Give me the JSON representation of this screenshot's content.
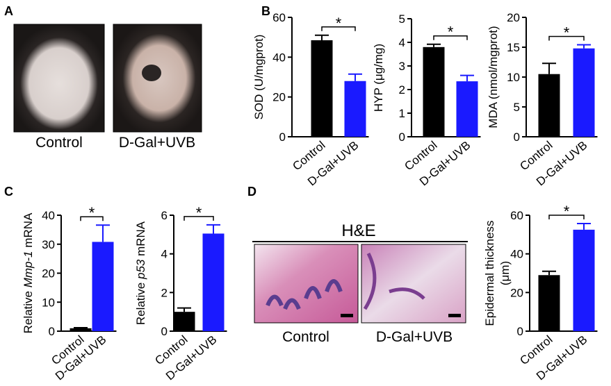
{
  "panel_labels": [
    "A",
    "B",
    "C",
    "D"
  ],
  "photo_captions": [
    "Control",
    "D-Gal+UVB"
  ],
  "histology": {
    "title": "H&E",
    "captions": [
      "Control",
      "D-Gal+UVB"
    ]
  },
  "chart_data": [
    {
      "type": "bar",
      "ylabel": [
        "SOD (U/mgprot)"
      ],
      "categories": [
        "Control",
        "D-Gal+UVB"
      ],
      "values": [
        48.5,
        28
      ],
      "errors": [
        2.5,
        3.5
      ],
      "colors": [
        "#000000",
        "#1a1aff"
      ],
      "ylim": [
        0,
        60
      ],
      "yticks": [
        0,
        20,
        40,
        60
      ],
      "annotation": "*"
    },
    {
      "type": "bar",
      "ylabel": [
        "HYP (μg/mg)"
      ],
      "categories": [
        "Control",
        "D-Gal+UVB"
      ],
      "values": [
        3.8,
        2.35
      ],
      "errors": [
        0.12,
        0.25
      ],
      "colors": [
        "#000000",
        "#1a1aff"
      ],
      "ylim": [
        0,
        5
      ],
      "yticks": [
        0,
        1,
        2,
        3,
        4,
        5
      ],
      "annotation": "*"
    },
    {
      "type": "bar",
      "ylabel": [
        "MDA (nmol/mgprot)"
      ],
      "categories": [
        "Control",
        "D-Gal+UVB"
      ],
      "values": [
        10.5,
        14.8
      ],
      "errors": [
        1.8,
        0.6
      ],
      "colors": [
        "#000000",
        "#1a1aff"
      ],
      "ylim": [
        0,
        20
      ],
      "yticks": [
        0,
        5,
        10,
        15,
        20
      ],
      "annotation": "*"
    },
    {
      "type": "bar",
      "ylabel": [
        "Relative ",
        "Mmp-1",
        " mRNA"
      ],
      "categories": [
        "Control",
        "D-Gal+UVB"
      ],
      "values": [
        1,
        30.8
      ],
      "errors": [
        0.2,
        5.8
      ],
      "colors": [
        "#000000",
        "#1a1aff"
      ],
      "ylim": [
        0,
        40
      ],
      "yticks": [
        0,
        10,
        20,
        30,
        40
      ],
      "annotation": "*"
    },
    {
      "type": "bar",
      "ylabel": [
        "Relative ",
        "p53",
        " mRNA"
      ],
      "categories": [
        "Control",
        "D-Gal+UVB"
      ],
      "values": [
        1,
        5.05
      ],
      "errors": [
        0.2,
        0.45
      ],
      "colors": [
        "#000000",
        "#1a1aff"
      ],
      "ylim": [
        0,
        6
      ],
      "yticks": [
        0,
        2,
        4,
        6
      ],
      "annotation": "*"
    },
    {
      "type": "bar",
      "ylabel": [
        "Epidermal thickness",
        "(μm)"
      ],
      "categories": [
        "Control",
        "D-Gal+UVB"
      ],
      "values": [
        29,
        52.5
      ],
      "errors": [
        2,
        3.2
      ],
      "colors": [
        "#000000",
        "#1a1aff"
      ],
      "ylim": [
        0,
        60
      ],
      "yticks": [
        0,
        20,
        40,
        60
      ],
      "annotation": "*"
    }
  ]
}
